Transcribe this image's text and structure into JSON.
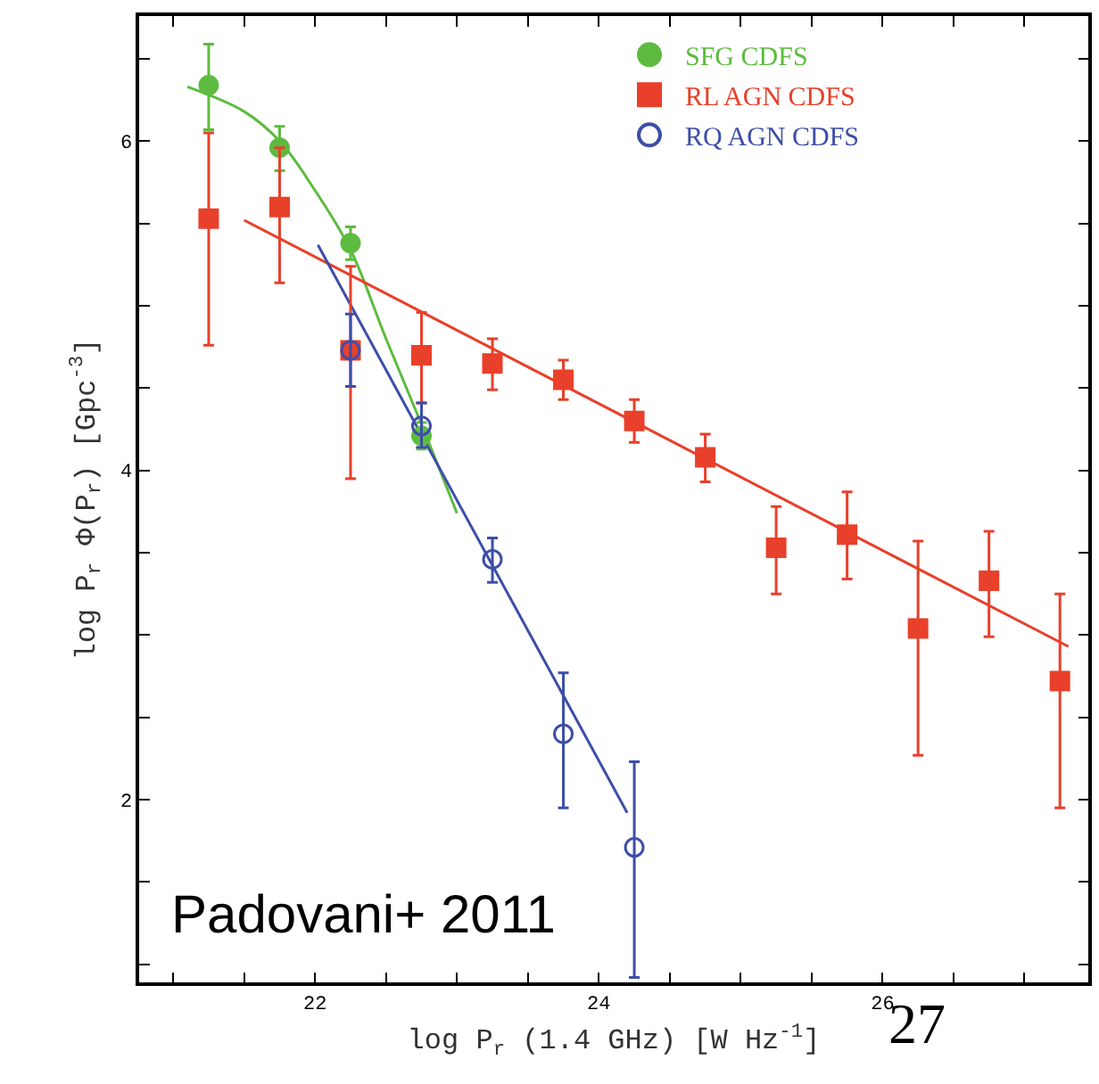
{
  "chart_data": {
    "type": "scatter",
    "xlabel": "log P$_{r}$ (1.4 GHz) [W Hz$^{-1}$]",
    "ylabel": "log P$_{r}$ Φ(P$_{r}$) [Gpc$^{-3}$]",
    "xlim": [
      20.76,
      27.45
    ],
    "ylim": [
      0.89,
      6.76
    ],
    "xticks": [
      {
        "value": 21.0,
        "label": null
      },
      {
        "value": 21.5,
        "label": null
      },
      22,
      {
        "value": 22.5,
        "label": null
      },
      {
        "value": 23.0,
        "label": null
      },
      {
        "value": 23.5,
        "label": null
      },
      24,
      {
        "value": 24.5,
        "label": null
      },
      {
        "value": 25.0,
        "label": null
      },
      {
        "value": 25.5,
        "label": null
      },
      26,
      {
        "value": 26.5,
        "label": null
      },
      {
        "value": 27.0,
        "label": null
      }
    ],
    "yticks": [
      {
        "value": 1.0,
        "label": null
      },
      {
        "value": 1.5,
        "label": null
      },
      2,
      {
        "value": 2.5,
        "label": null
      },
      {
        "value": 3.0,
        "label": null
      },
      {
        "value": 3.5,
        "label": null
      },
      4,
      {
        "value": 4.5,
        "label": null
      },
      {
        "value": 5.0,
        "label": null
      },
      {
        "value": 5.5,
        "label": null
      },
      6,
      {
        "value": 6.5,
        "label": null
      }
    ],
    "legend": "top right",
    "series": [
      {
        "name": "SFG CDFS",
        "color": "#5dbb3f",
        "marker": "circle",
        "x": [
          21.25,
          21.75,
          22.25,
          22.75
        ],
        "values": [
          6.34,
          5.96,
          5.38,
          4.21
        ],
        "errors": [
          [
            6.07,
            6.59
          ],
          [
            5.82,
            6.09
          ],
          [
            5.28,
            5.48
          ],
          [
            4.13,
            4.29
          ]
        ]
      },
      {
        "name": "RL AGN CDFS",
        "color": "#e8402a",
        "marker": "square",
        "x": [
          21.25,
          21.75,
          22.25,
          22.75,
          23.25,
          23.75,
          24.25,
          24.75,
          25.25,
          25.75,
          26.25,
          26.75,
          27.25
        ],
        "values": [
          5.53,
          5.6,
          4.73,
          4.7,
          4.65,
          4.55,
          4.3,
          4.08,
          3.53,
          3.61,
          3.04,
          3.33,
          2.72
        ],
        "errors": [
          [
            4.76,
            6.05
          ],
          [
            5.14,
            5.96
          ],
          [
            3.95,
            5.24
          ],
          [
            4.41,
            4.96
          ],
          [
            4.49,
            4.8
          ],
          [
            4.43,
            4.67
          ],
          [
            4.17,
            4.43
          ],
          [
            3.93,
            4.22
          ],
          [
            3.25,
            3.78
          ],
          [
            3.34,
            3.87
          ],
          [
            2.27,
            3.57
          ],
          [
            2.99,
            3.63
          ],
          [
            1.95,
            3.25
          ]
        ]
      },
      {
        "name": "RQ AGN CDFS",
        "color": "#3d4ea8",
        "marker": "circle-open",
        "x": [
          22.25,
          22.75,
          23.25,
          23.75,
          24.25
        ],
        "values": [
          4.73,
          4.27,
          3.46,
          2.4,
          1.71
        ],
        "errors": [
          [
            4.51,
            4.95
          ],
          [
            4.14,
            4.41
          ],
          [
            3.32,
            3.59
          ],
          [
            1.95,
            2.77
          ],
          [
            0.92,
            2.23
          ]
        ]
      },
      {
        "type": "line",
        "color": "#5dbb3f",
        "x": [
          21.1,
          21.5,
          21.75,
          22.0,
          22.25,
          22.5,
          22.75,
          23.0
        ],
        "values": [
          6.33,
          6.18,
          6.0,
          5.7,
          5.34,
          4.8,
          4.28,
          3.74
        ]
      },
      {
        "type": "line",
        "color": "#e8402a",
        "x": [
          21.5,
          27.31
        ],
        "values": [
          5.52,
          2.93
        ]
      },
      {
        "type": "line",
        "color": "#3d4ea8",
        "x": [
          22.02,
          24.2
        ],
        "values": [
          5.37,
          1.92
        ]
      }
    ],
    "annotations": [
      "Padovani+ 2011",
      "27"
    ]
  }
}
